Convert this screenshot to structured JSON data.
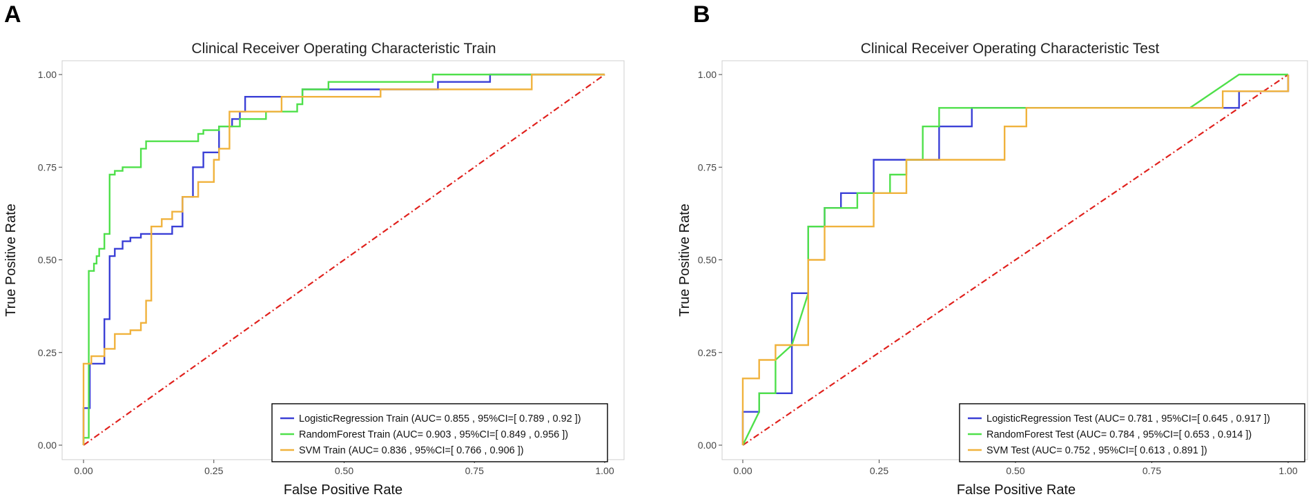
{
  "chart_data": [
    {
      "panel_label": "A",
      "type": "line",
      "title": "Clinical Receiver Operating Characteristic Train",
      "xlabel": "False Positive Rate",
      "ylabel": "True Positive Rate",
      "xlim": [
        0,
        1
      ],
      "ylim": [
        0,
        1
      ],
      "x_ticks": [
        "0.00",
        "0.25",
        "0.50",
        "0.75",
        "1.00"
      ],
      "y_ticks": [
        "0.00",
        "0.25",
        "0.50",
        "0.75",
        "1.00"
      ],
      "grid": false,
      "legend_position": "bottom-right",
      "reference_line": {
        "x": [
          0,
          1
        ],
        "y": [
          0,
          1
        ],
        "color": "#e0201c",
        "style": "dash-dot"
      },
      "series": [
        {
          "name": "LogisticRegression Train (AUC= 0.855 , 95%CI=[ 0.789 , 0.92 ])",
          "color": "#3a3fd6",
          "x": [
            0,
            0,
            0.012,
            0.012,
            0.04,
            0.04,
            0.05,
            0.05,
            0.06,
            0.06,
            0.075,
            0.075,
            0.09,
            0.09,
            0.11,
            0.11,
            0.17,
            0.17,
            0.19,
            0.19,
            0.21,
            0.21,
            0.23,
            0.23,
            0.26,
            0.26,
            0.285,
            0.285,
            0.3,
            0.3,
            0.31,
            0.31,
            0.42,
            0.42,
            0.44,
            0.44,
            0.57,
            0.57,
            0.68,
            0.68,
            0.78,
            0.78,
            1.0
          ],
          "y": [
            0,
            0.1,
            0.1,
            0.22,
            0.22,
            0.34,
            0.34,
            0.51,
            0.51,
            0.53,
            0.53,
            0.55,
            0.55,
            0.56,
            0.56,
            0.57,
            0.57,
            0.59,
            0.59,
            0.67,
            0.67,
            0.75,
            0.75,
            0.79,
            0.79,
            0.86,
            0.86,
            0.88,
            0.88,
            0.9,
            0.9,
            0.94,
            0.94,
            0.96,
            0.96,
            0.96,
            0.96,
            0.96,
            0.96,
            0.98,
            0.98,
            1.0,
            1.0
          ]
        },
        {
          "name": "RandomForest Train (AUC= 0.903 , 95%CI=[ 0.849 , 0.956 ])",
          "color": "#4ee04a",
          "x": [
            0,
            0,
            0.01,
            0.01,
            0.02,
            0.02,
            0.025,
            0.025,
            0.03,
            0.03,
            0.04,
            0.04,
            0.05,
            0.05,
            0.06,
            0.06,
            0.075,
            0.075,
            0.11,
            0.11,
            0.12,
            0.12,
            0.22,
            0.22,
            0.23,
            0.23,
            0.26,
            0.26,
            0.3,
            0.3,
            0.31,
            0.31,
            0.35,
            0.35,
            0.37,
            0.37,
            0.41,
            0.41,
            0.42,
            0.42,
            0.47,
            0.47,
            0.67,
            0.67,
            0.86,
            0.86,
            1.0
          ],
          "y": [
            0,
            0.02,
            0.02,
            0.47,
            0.47,
            0.49,
            0.49,
            0.51,
            0.51,
            0.53,
            0.53,
            0.57,
            0.57,
            0.73,
            0.73,
            0.74,
            0.74,
            0.75,
            0.75,
            0.8,
            0.8,
            0.82,
            0.82,
            0.84,
            0.84,
            0.85,
            0.85,
            0.86,
            0.86,
            0.88,
            0.88,
            0.88,
            0.88,
            0.9,
            0.9,
            0.9,
            0.9,
            0.92,
            0.92,
            0.96,
            0.96,
            0.98,
            0.98,
            1.0,
            1.0,
            1.0,
            1.0
          ]
        },
        {
          "name": "SVM Train (AUC= 0.836 , 95%CI=[ 0.766 , 0.906 ])",
          "color": "#f0b23c",
          "x": [
            0,
            0,
            0.015,
            0.015,
            0.04,
            0.04,
            0.06,
            0.06,
            0.09,
            0.09,
            0.11,
            0.11,
            0.12,
            0.12,
            0.13,
            0.13,
            0.15,
            0.15,
            0.17,
            0.17,
            0.19,
            0.19,
            0.22,
            0.22,
            0.25,
            0.25,
            0.26,
            0.26,
            0.28,
            0.28,
            0.38,
            0.38,
            0.57,
            0.57,
            0.86,
            0.86,
            1.0
          ],
          "y": [
            0,
            0.22,
            0.22,
            0.24,
            0.24,
            0.26,
            0.26,
            0.3,
            0.3,
            0.31,
            0.31,
            0.33,
            0.33,
            0.39,
            0.39,
            0.59,
            0.59,
            0.61,
            0.61,
            0.63,
            0.63,
            0.67,
            0.67,
            0.71,
            0.71,
            0.77,
            0.77,
            0.8,
            0.8,
            0.9,
            0.9,
            0.94,
            0.94,
            0.96,
            0.96,
            1.0,
            1.0
          ]
        }
      ]
    },
    {
      "panel_label": "B",
      "type": "line",
      "title": "Clinical Receiver Operating Characteristic Test",
      "xlabel": "False Positive Rate",
      "ylabel": "True Positive Rate",
      "xlim": [
        0,
        1
      ],
      "ylim": [
        0,
        1
      ],
      "x_ticks": [
        "0.00",
        "0.25",
        "0.50",
        "0.75",
        "1.00"
      ],
      "y_ticks": [
        "0.00",
        "0.25",
        "0.50",
        "0.75",
        "1.00"
      ],
      "grid": false,
      "legend_position": "bottom-right",
      "reference_line": {
        "x": [
          0,
          1
        ],
        "y": [
          0,
          1
        ],
        "color": "#e0201c",
        "style": "dash-dot"
      },
      "series": [
        {
          "name": "LogisticRegression Test (AUC= 0.781 , 95%CI=[ 0.645 , 0.917 ])",
          "color": "#3a3fd6",
          "x": [
            0,
            0,
            0.03,
            0.03,
            0.09,
            0.09,
            0.12,
            0.12,
            0.15,
            0.15,
            0.18,
            0.18,
            0.21,
            0.21,
            0.24,
            0.24,
            0.3,
            0.3,
            0.36,
            0.36,
            0.42,
            0.42,
            0.88,
            0.88,
            0.91,
            0.91,
            1.0,
            1.0
          ],
          "y": [
            0,
            0.09,
            0.09,
            0.14,
            0.14,
            0.41,
            0.41,
            0.59,
            0.59,
            0.64,
            0.64,
            0.68,
            0.68,
            0.68,
            0.68,
            0.77,
            0.77,
            0.77,
            0.77,
            0.86,
            0.86,
            0.91,
            0.91,
            0.91,
            0.91,
            0.955,
            0.955,
            1.0
          ]
        },
        {
          "name": "RandomForest Test (AUC= 0.784 , 95%CI=[ 0.653 , 0.914 ])",
          "color": "#4ee04a",
          "x": [
            0,
            0.03,
            0.03,
            0.06,
            0.06,
            0.09,
            0.12,
            0.12,
            0.15,
            0.15,
            0.21,
            0.21,
            0.27,
            0.27,
            0.3,
            0.3,
            0.33,
            0.33,
            0.36,
            0.36,
            0.82,
            0.91,
            1.0
          ],
          "y": [
            0,
            0.09,
            0.14,
            0.14,
            0.23,
            0.27,
            0.41,
            0.59,
            0.59,
            0.64,
            0.64,
            0.68,
            0.68,
            0.73,
            0.73,
            0.77,
            0.77,
            0.86,
            0.86,
            0.91,
            0.91,
            1.0,
            1.0
          ]
        },
        {
          "name": "SVM Test (AUC= 0.752 , 95%CI=[ 0.613 , 0.891 ])",
          "color": "#f0b23c",
          "x": [
            0,
            0,
            0.03,
            0.03,
            0.06,
            0.06,
            0.09,
            0.09,
            0.12,
            0.12,
            0.15,
            0.15,
            0.24,
            0.24,
            0.3,
            0.3,
            0.48,
            0.48,
            0.52,
            0.52,
            0.88,
            0.88,
            1.0,
            1.0
          ],
          "y": [
            0,
            0.18,
            0.18,
            0.23,
            0.23,
            0.27,
            0.27,
            0.27,
            0.27,
            0.5,
            0.5,
            0.59,
            0.59,
            0.68,
            0.68,
            0.77,
            0.77,
            0.86,
            0.86,
            0.91,
            0.91,
            0.955,
            0.955,
            1.0
          ]
        }
      ]
    }
  ]
}
